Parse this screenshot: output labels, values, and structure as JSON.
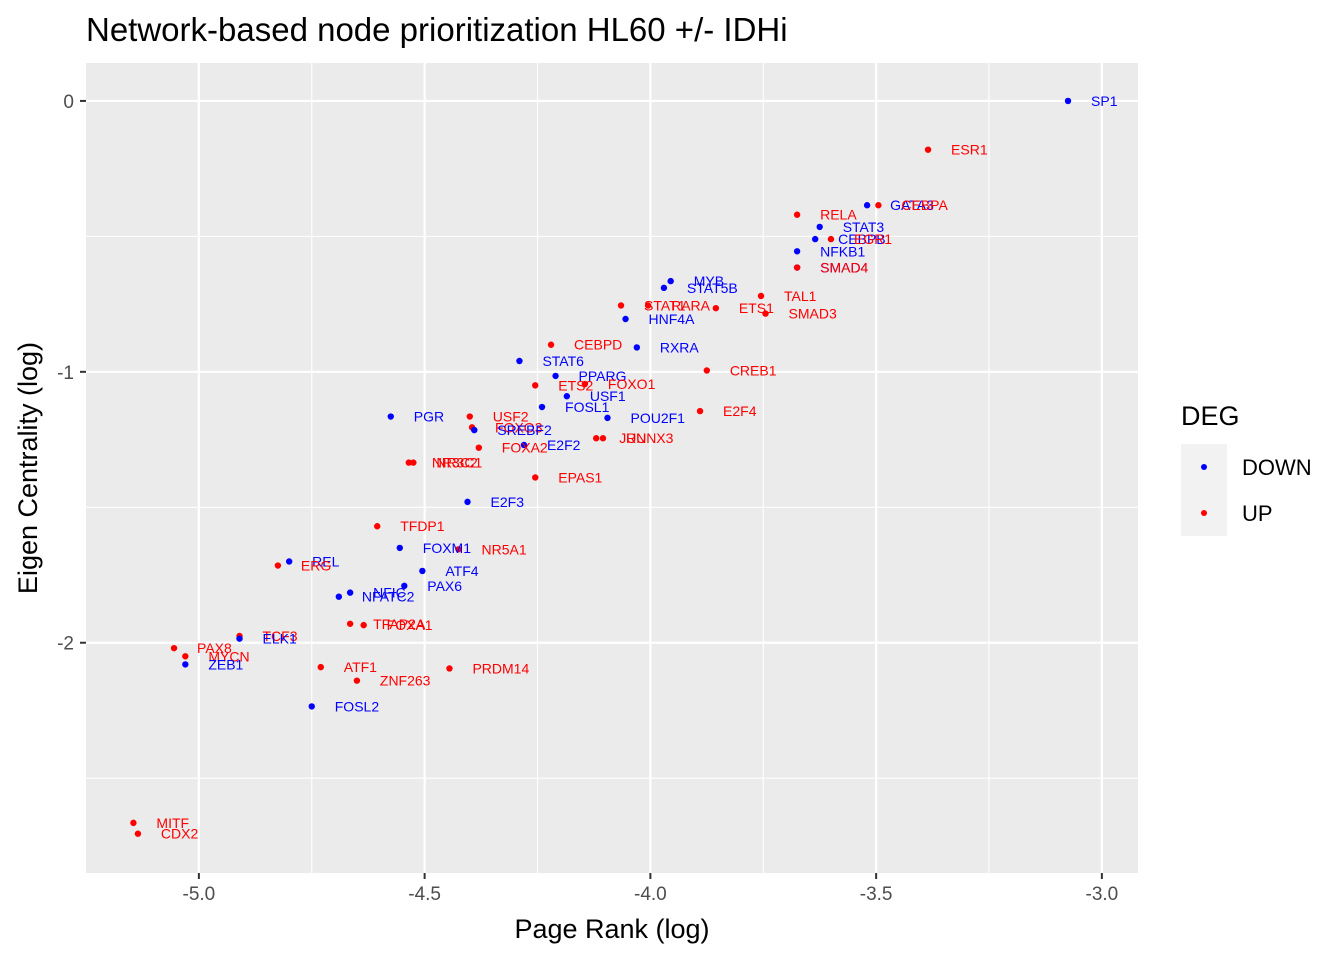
{
  "chart_data": {
    "type": "scatter",
    "title": "Network-based node prioritization HL60 +/- IDHi",
    "xlabel": "Page Rank (log)",
    "ylabel": "Eigen Centrality (log)",
    "xlim": [
      -5.25,
      -2.92
    ],
    "ylim": [
      -2.85,
      0.14
    ],
    "xticks": [
      -5.0,
      -4.5,
      -4.0,
      -3.5,
      -3.0
    ],
    "xtick_labels": [
      "-5.0",
      "-4.5",
      "-4.0",
      "-3.5",
      "-3.0"
    ],
    "yticks": [
      0,
      -1,
      -2
    ],
    "ytick_labels": [
      "0",
      "-1",
      "-2"
    ],
    "grid": true,
    "legend": {
      "title": "DEG",
      "position": "right",
      "entries": [
        {
          "label": "DOWN",
          "color": "#0000ff"
        },
        {
          "label": "UP",
          "color": "#ff0000"
        }
      ]
    },
    "colors": {
      "DOWN": "#0000ff",
      "UP": "#ff0000"
    },
    "points": [
      {
        "label": "SP1",
        "x": -3.075,
        "y": 0.0,
        "deg": "DOWN"
      },
      {
        "label": "ESR1",
        "x": -3.385,
        "y": -0.18,
        "deg": "UP"
      },
      {
        "label": "GATA3",
        "x": -3.52,
        "y": -0.385,
        "deg": "DOWN"
      },
      {
        "label": "CEBPA",
        "x": -3.495,
        "y": -0.385,
        "deg": "UP"
      },
      {
        "label": "RELA",
        "x": -3.675,
        "y": -0.42,
        "deg": "UP"
      },
      {
        "label": "STAT3",
        "x": -3.625,
        "y": -0.465,
        "deg": "DOWN"
      },
      {
        "label": "CEBPB",
        "x": -3.635,
        "y": -0.51,
        "deg": "DOWN"
      },
      {
        "label": "EGR1",
        "x": -3.6,
        "y": -0.51,
        "deg": "UP"
      },
      {
        "label": "NFKB1",
        "x": -3.675,
        "y": -0.555,
        "deg": "DOWN"
      },
      {
        "label": "SMAD4",
        "x": -3.675,
        "y": -0.615,
        "deg": "DOWN"
      },
      {
        "label": "SMAD4",
        "x": -3.675,
        "y": -0.615,
        "deg": "UP"
      },
      {
        "label": "MYB",
        "x": -3.955,
        "y": -0.665,
        "deg": "DOWN"
      },
      {
        "label": "STAT5B",
        "x": -3.97,
        "y": -0.69,
        "deg": "DOWN"
      },
      {
        "label": "TAL1",
        "x": -3.755,
        "y": -0.72,
        "deg": "UP"
      },
      {
        "label": "STAT1",
        "x": -4.065,
        "y": -0.755,
        "deg": "UP"
      },
      {
        "label": "RARA",
        "x": -4.005,
        "y": -0.755,
        "deg": "UP"
      },
      {
        "label": "ETS1",
        "x": -3.855,
        "y": -0.765,
        "deg": "UP"
      },
      {
        "label": "SMAD3",
        "x": -3.745,
        "y": -0.785,
        "deg": "UP"
      },
      {
        "label": "HNF4A",
        "x": -4.055,
        "y": -0.805,
        "deg": "DOWN"
      },
      {
        "label": "CEBPD",
        "x": -4.22,
        "y": -0.9,
        "deg": "UP"
      },
      {
        "label": "RXRA",
        "x": -4.03,
        "y": -0.91,
        "deg": "DOWN"
      },
      {
        "label": "STAT6",
        "x": -4.29,
        "y": -0.96,
        "deg": "DOWN"
      },
      {
        "label": "CREB1",
        "x": -3.875,
        "y": -0.995,
        "deg": "UP"
      },
      {
        "label": "PPARG",
        "x": -4.21,
        "y": -1.015,
        "deg": "DOWN"
      },
      {
        "label": "ETS2",
        "x": -4.255,
        "y": -1.05,
        "deg": "UP"
      },
      {
        "label": "FOXO1",
        "x": -4.145,
        "y": -1.045,
        "deg": "UP"
      },
      {
        "label": "USF1",
        "x": -4.185,
        "y": -1.09,
        "deg": "DOWN"
      },
      {
        "label": "FOSL1",
        "x": -4.24,
        "y": -1.13,
        "deg": "DOWN"
      },
      {
        "label": "E2F4",
        "x": -3.89,
        "y": -1.145,
        "deg": "UP"
      },
      {
        "label": "PGR",
        "x": -4.575,
        "y": -1.165,
        "deg": "DOWN"
      },
      {
        "label": "USF2",
        "x": -4.4,
        "y": -1.165,
        "deg": "UP"
      },
      {
        "label": "POU2F1",
        "x": -4.095,
        "y": -1.17,
        "deg": "DOWN"
      },
      {
        "label": "FOXO3",
        "x": -4.395,
        "y": -1.205,
        "deg": "UP"
      },
      {
        "label": "SREBF2",
        "x": -4.39,
        "y": -1.215,
        "deg": "DOWN"
      },
      {
        "label": "RUNX3",
        "x": -4.105,
        "y": -1.245,
        "deg": "UP"
      },
      {
        "label": "JUN",
        "x": -4.12,
        "y": -1.245,
        "deg": "UP"
      },
      {
        "label": "E2F2",
        "x": -4.28,
        "y": -1.27,
        "deg": "DOWN"
      },
      {
        "label": "FOXA2",
        "x": -4.38,
        "y": -1.28,
        "deg": "UP"
      },
      {
        "label": "NR3C2",
        "x": -4.535,
        "y": -1.335,
        "deg": "UP"
      },
      {
        "label": "NR3C1",
        "x": -4.525,
        "y": -1.335,
        "deg": "UP"
      },
      {
        "label": "EPAS1",
        "x": -4.255,
        "y": -1.39,
        "deg": "UP"
      },
      {
        "label": "E2F3",
        "x": -4.405,
        "y": -1.48,
        "deg": "DOWN"
      },
      {
        "label": "TFDP1",
        "x": -4.605,
        "y": -1.57,
        "deg": "UP"
      },
      {
        "label": "FOXM1",
        "x": -4.555,
        "y": -1.65,
        "deg": "DOWN"
      },
      {
        "label": "NR5A1",
        "x": -4.425,
        "y": -1.655,
        "deg": "UP"
      },
      {
        "label": "REL",
        "x": -4.8,
        "y": -1.7,
        "deg": "DOWN"
      },
      {
        "label": "ERG",
        "x": -4.825,
        "y": -1.715,
        "deg": "UP"
      },
      {
        "label": "ATF4",
        "x": -4.505,
        "y": -1.735,
        "deg": "DOWN"
      },
      {
        "label": "PAX6",
        "x": -4.545,
        "y": -1.79,
        "deg": "DOWN"
      },
      {
        "label": "NFIC",
        "x": -4.665,
        "y": -1.815,
        "deg": "DOWN"
      },
      {
        "label": "NFATC2",
        "x": -4.69,
        "y": -1.83,
        "deg": "DOWN"
      },
      {
        "label": "TFAP2A",
        "x": -4.665,
        "y": -1.93,
        "deg": "UP"
      },
      {
        "label": "FOXA1",
        "x": -4.635,
        "y": -1.935,
        "deg": "UP"
      },
      {
        "label": "TCF3",
        "x": -4.91,
        "y": -1.975,
        "deg": "UP"
      },
      {
        "label": "ELK1",
        "x": -4.91,
        "y": -1.985,
        "deg": "DOWN"
      },
      {
        "label": "PAX8",
        "x": -5.055,
        "y": -2.02,
        "deg": "UP"
      },
      {
        "label": "MYCN",
        "x": -5.03,
        "y": -2.05,
        "deg": "UP"
      },
      {
        "label": "ZEB1",
        "x": -5.03,
        "y": -2.08,
        "deg": "DOWN"
      },
      {
        "label": "ATF1",
        "x": -4.73,
        "y": -2.09,
        "deg": "UP"
      },
      {
        "label": "PRDM14",
        "x": -4.445,
        "y": -2.095,
        "deg": "UP"
      },
      {
        "label": "ZNF263",
        "x": -4.65,
        "y": -2.14,
        "deg": "UP"
      },
      {
        "label": "FOSL2",
        "x": -4.75,
        "y": -2.235,
        "deg": "DOWN"
      },
      {
        "label": "MITF",
        "x": -5.145,
        "y": -2.665,
        "deg": "UP"
      },
      {
        "label": "CDX2",
        "x": -5.135,
        "y": -2.705,
        "deg": "UP"
      }
    ]
  }
}
